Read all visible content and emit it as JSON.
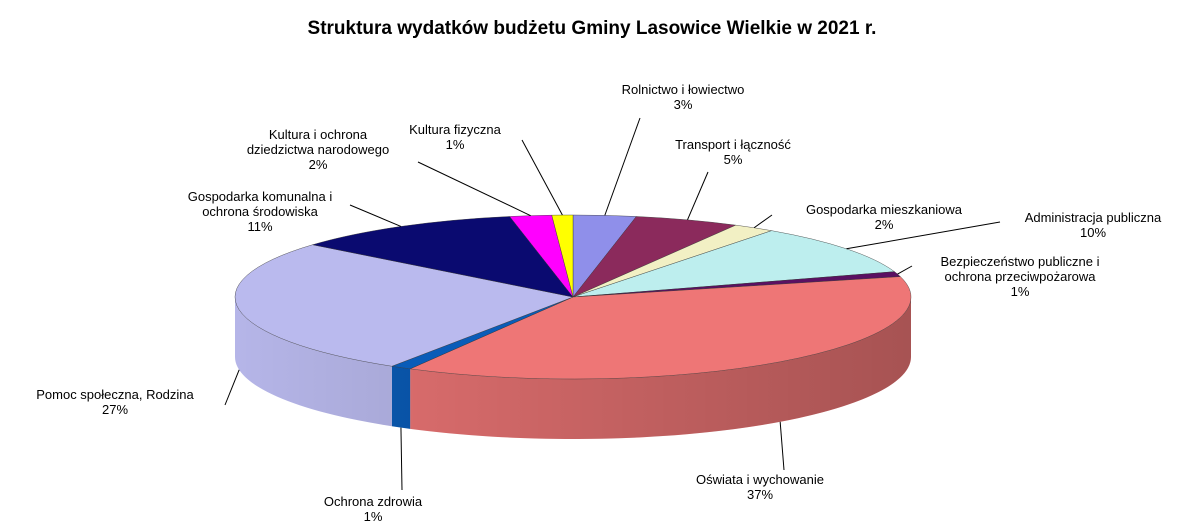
{
  "chart_data": {
    "type": "pie3d",
    "title": "Struktura wydatków budżetu Gminy Lasowice Wielkie w 2021 r.",
    "categories": [
      "Rolnictwo i łowiectwo",
      "Transport i łączność",
      "Gospodarka mieszkaniowa",
      "Administracja publiczna",
      "Bezpieczeństwo publiczne  i\nochrona przeciwpożarowa",
      "Oświata i wychowanie",
      "Ochrona zdrowia",
      "Pomoc społeczna, Rodzina",
      "Gospodarka komunalna  i\nochrona środowiska",
      "Kultura i ochrona\ndziedzictwa narodowego",
      "Kultura fizyczna"
    ],
    "values": [
      3,
      5,
      2,
      10,
      1,
      37,
      1,
      27,
      11,
      2,
      1
    ],
    "value_labels": [
      "3%",
      "5%",
      "2%",
      "10%",
      "1%",
      "37%",
      "1%",
      "27%",
      "11%",
      "2%",
      "1%"
    ],
    "colors": [
      "#8f8fea",
      "#8b2a5c",
      "#f2f0c4",
      "#bdeeee",
      "#5a1062",
      "#ee7676",
      "#0a5cb8",
      "#babaee",
      "#0a0a70",
      "#ff00ff",
      "#ffff00"
    ]
  }
}
